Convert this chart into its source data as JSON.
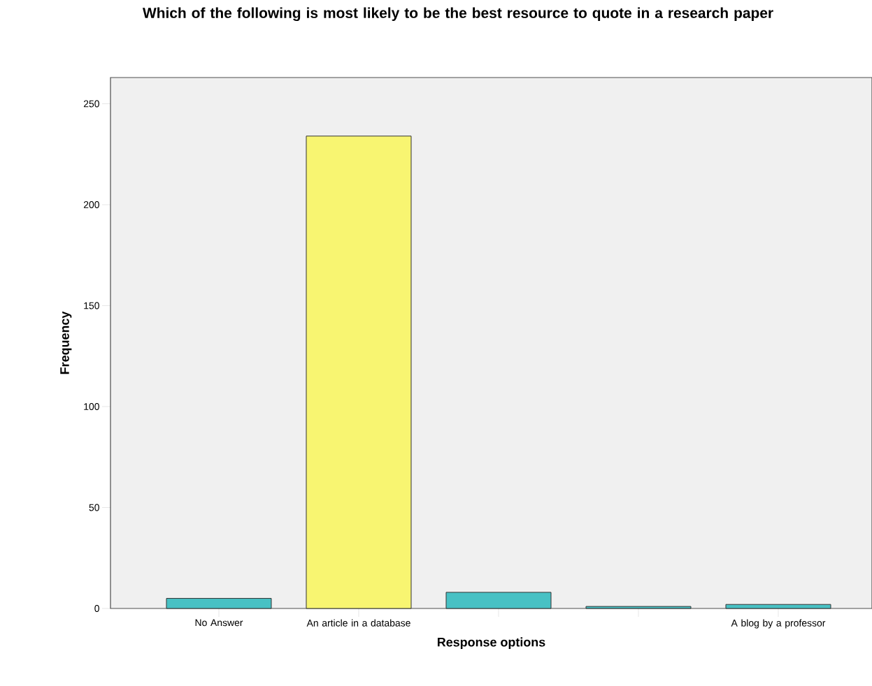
{
  "chart_data": {
    "type": "bar",
    "title": "Which of the following is most likely to be the best resource to quote in a research paper",
    "xlabel": "Response options",
    "ylabel": "Frequency",
    "categories": [
      "No Answer",
      "An article in a database",
      null,
      null,
      "A blog by a professor"
    ],
    "values": [
      5,
      234,
      8,
      1,
      2
    ],
    "colors": [
      "#48c1c4",
      "#f8f571",
      "#48c1c4",
      "#48c1c4",
      "#48c1c4"
    ],
    "ylim": [
      0,
      263
    ],
    "yticks": [
      0,
      50,
      100,
      150,
      200,
      250
    ]
  }
}
